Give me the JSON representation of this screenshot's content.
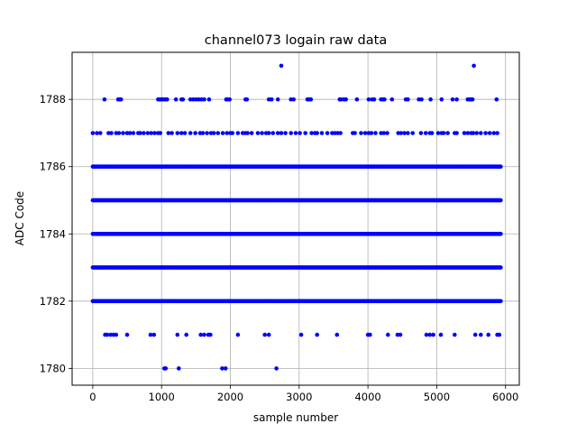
{
  "chart_data": {
    "type": "scatter",
    "title": "channel073 logain raw data",
    "xlabel": "sample number",
    "ylabel": "ADC Code",
    "xlim": [
      -300,
      6200
    ],
    "ylim": [
      1779.5,
      1789.4
    ],
    "xticks": [
      0,
      1000,
      2000,
      3000,
      4000,
      5000,
      6000
    ],
    "yticks": [
      1780,
      1782,
      1784,
      1786,
      1788
    ],
    "xtick_labels": [
      "0",
      "1000",
      "2000",
      "3000",
      "4000",
      "5000",
      "6000"
    ],
    "ytick_labels": [
      "1780",
      "1782",
      "1784",
      "1786",
      "1788"
    ],
    "grid": true,
    "marker_color": "#0000ff",
    "x_range": [
      0,
      5930
    ],
    "dense_levels": [
      1782,
      1783,
      1784,
      1785,
      1786
    ],
    "sparse_series": [
      {
        "level": 1789,
        "x": [
          2740,
          5540
        ]
      },
      {
        "level": 1788,
        "x": [
          170,
          370,
          390,
          410,
          950,
          970,
          990,
          1010,
          1030,
          1060,
          1080,
          1210,
          1290,
          1310,
          1420,
          1460,
          1500,
          1540,
          1580,
          1620,
          1690,
          1940,
          1960,
          1990,
          2220,
          2240,
          2560,
          2600,
          2690,
          2880,
          2920,
          3120,
          3140,
          3170,
          3590,
          3610,
          3650,
          3680,
          3840,
          4010,
          4060,
          4090,
          4190,
          4220,
          4240,
          4350,
          4550,
          4580,
          4740,
          4780,
          4910,
          5070,
          5230,
          5290,
          5450,
          5480,
          5500,
          5520,
          5870
        ]
      },
      {
        "level": 1787,
        "x": [
          0,
          60,
          110,
          230,
          270,
          340,
          380,
          440,
          500,
          540,
          590,
          660,
          690,
          740,
          800,
          850,
          900,
          950,
          980,
          1100,
          1150,
          1230,
          1290,
          1340,
          1420,
          1490,
          1560,
          1600,
          1660,
          1720,
          1760,
          1820,
          1890,
          1950,
          2000,
          2030,
          2110,
          2180,
          2220,
          2250,
          2310,
          2400,
          2460,
          2520,
          2560,
          2620,
          2690,
          2740,
          2800,
          2880,
          2950,
          3010,
          3090,
          3180,
          3230,
          3260,
          3330,
          3410,
          3480,
          3520,
          3560,
          3600,
          3780,
          3810,
          3900,
          3960,
          4010,
          4050,
          4110,
          4190,
          4230,
          4280,
          4440,
          4480,
          4530,
          4580,
          4650,
          4770,
          4840,
          4900,
          4930,
          5020,
          5070,
          5100,
          5160,
          5260,
          5290,
          5400,
          5450,
          5500,
          5530,
          5580,
          5640,
          5710,
          5770,
          5830,
          5880
        ]
      },
      {
        "level": 1781,
        "x": [
          180,
          210,
          260,
          300,
          340,
          500,
          840,
          890,
          1230,
          1360,
          1570,
          1620,
          1680,
          1710,
          2110,
          2500,
          2560,
          3030,
          3260,
          3550,
          4000,
          4030,
          4290,
          4430,
          4470,
          4850,
          4900,
          4950,
          5060,
          5260,
          5560,
          5640,
          5750,
          5880,
          5910
        ]
      },
      {
        "level": 1780,
        "x": [
          1040,
          1060,
          1250,
          1880,
          1930,
          2670
        ]
      }
    ]
  }
}
